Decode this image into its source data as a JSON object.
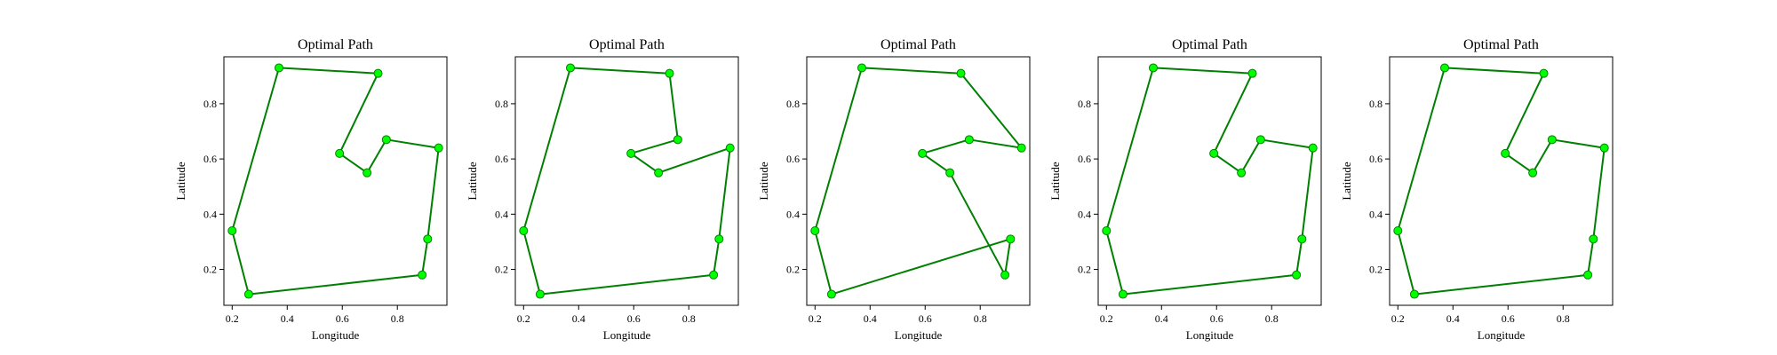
{
  "chart_data": [
    {
      "type": "line",
      "title": "Optimal Path",
      "xlabel": "Longitude",
      "ylabel": "Latitude",
      "xlim": [
        0.17,
        0.98
      ],
      "ylim": [
        0.07,
        0.97
      ],
      "xticks": [
        "0.2",
        "0.4",
        "0.6",
        "0.8"
      ],
      "yticks": [
        "0.2",
        "0.4",
        "0.6",
        "0.8"
      ],
      "series": [
        {
          "x": [
            0.37,
            0.73,
            0.59,
            0.69,
            0.76,
            0.95,
            0.91,
            0.89,
            0.26,
            0.2,
            0.37
          ],
          "y": [
            0.93,
            0.91,
            0.62,
            0.55,
            0.67,
            0.64,
            0.31,
            0.18,
            0.11,
            0.34,
            0.93
          ]
        }
      ]
    },
    {
      "type": "line",
      "title": "Optimal Path",
      "xlabel": "Longitude",
      "ylabel": "Latitude",
      "xlim": [
        0.17,
        0.98
      ],
      "ylim": [
        0.07,
        0.97
      ],
      "xticks": [
        "0.2",
        "0.4",
        "0.6",
        "0.8"
      ],
      "yticks": [
        "0.2",
        "0.4",
        "0.6",
        "0.8"
      ],
      "series": [
        {
          "x": [
            0.37,
            0.73,
            0.76,
            0.59,
            0.69,
            0.95,
            0.91,
            0.89,
            0.26,
            0.2,
            0.37
          ],
          "y": [
            0.93,
            0.91,
            0.67,
            0.62,
            0.55,
            0.64,
            0.31,
            0.18,
            0.11,
            0.34,
            0.93
          ]
        }
      ]
    },
    {
      "type": "line",
      "title": "Optimal Path",
      "xlabel": "Longitude",
      "ylabel": "Latitude",
      "xlim": [
        0.17,
        0.98
      ],
      "ylim": [
        0.07,
        0.97
      ],
      "xticks": [
        "0.2",
        "0.4",
        "0.6",
        "0.8"
      ],
      "yticks": [
        "0.2",
        "0.4",
        "0.6",
        "0.8"
      ],
      "series": [
        {
          "x": [
            0.37,
            0.73,
            0.95,
            0.76,
            0.59,
            0.69,
            0.89,
            0.91,
            0.26,
            0.2,
            0.37
          ],
          "y": [
            0.93,
            0.91,
            0.64,
            0.67,
            0.62,
            0.55,
            0.18,
            0.31,
            0.11,
            0.34,
            0.93
          ]
        }
      ]
    },
    {
      "type": "line",
      "title": "Optimal Path",
      "xlabel": "Longitude",
      "ylabel": "Latitude",
      "xlim": [
        0.17,
        0.98
      ],
      "ylim": [
        0.07,
        0.97
      ],
      "xticks": [
        "0.2",
        "0.4",
        "0.6",
        "0.8"
      ],
      "yticks": [
        "0.2",
        "0.4",
        "0.6",
        "0.8"
      ],
      "series": [
        {
          "x": [
            0.37,
            0.73,
            0.59,
            0.69,
            0.76,
            0.95,
            0.91,
            0.89,
            0.26,
            0.2,
            0.37
          ],
          "y": [
            0.93,
            0.91,
            0.62,
            0.55,
            0.67,
            0.64,
            0.31,
            0.18,
            0.11,
            0.34,
            0.93
          ]
        }
      ]
    },
    {
      "type": "line",
      "title": "Optimal Path",
      "xlabel": "Longitude",
      "ylabel": "Latitude",
      "xlim": [
        0.17,
        0.98
      ],
      "ylim": [
        0.07,
        0.97
      ],
      "xticks": [
        "0.2",
        "0.4",
        "0.6",
        "0.8"
      ],
      "yticks": [
        "0.2",
        "0.4",
        "0.6",
        "0.8"
      ],
      "series": [
        {
          "x": [
            0.37,
            0.73,
            0.59,
            0.69,
            0.76,
            0.95,
            0.91,
            0.89,
            0.26,
            0.2,
            0.37
          ],
          "y": [
            0.93,
            0.91,
            0.62,
            0.55,
            0.67,
            0.64,
            0.31,
            0.18,
            0.11,
            0.34,
            0.93
          ]
        }
      ]
    }
  ],
  "colors": {
    "line": "#008000",
    "marker_fill": "#00ff00",
    "marker_edge": "#008000",
    "axes": "#000000"
  }
}
